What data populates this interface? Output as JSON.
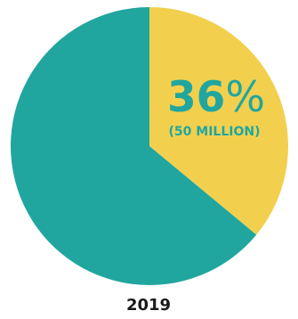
{
  "chart_data": {
    "type": "pie",
    "categories": [
      "",
      ""
    ],
    "values": [
      36,
      64
    ],
    "colors": [
      "#f2d04e",
      "#21a69f"
    ],
    "start_angle_deg": 0,
    "direction": "clockwise",
    "annotations": {
      "slice_value": "36",
      "slice_unit": "%",
      "slice_sublabel": "(50 MILLION)"
    },
    "label_color": "#21a69f",
    "xlabel": "2019",
    "xlabel_color": "#1a1a1a",
    "legend": "none"
  }
}
